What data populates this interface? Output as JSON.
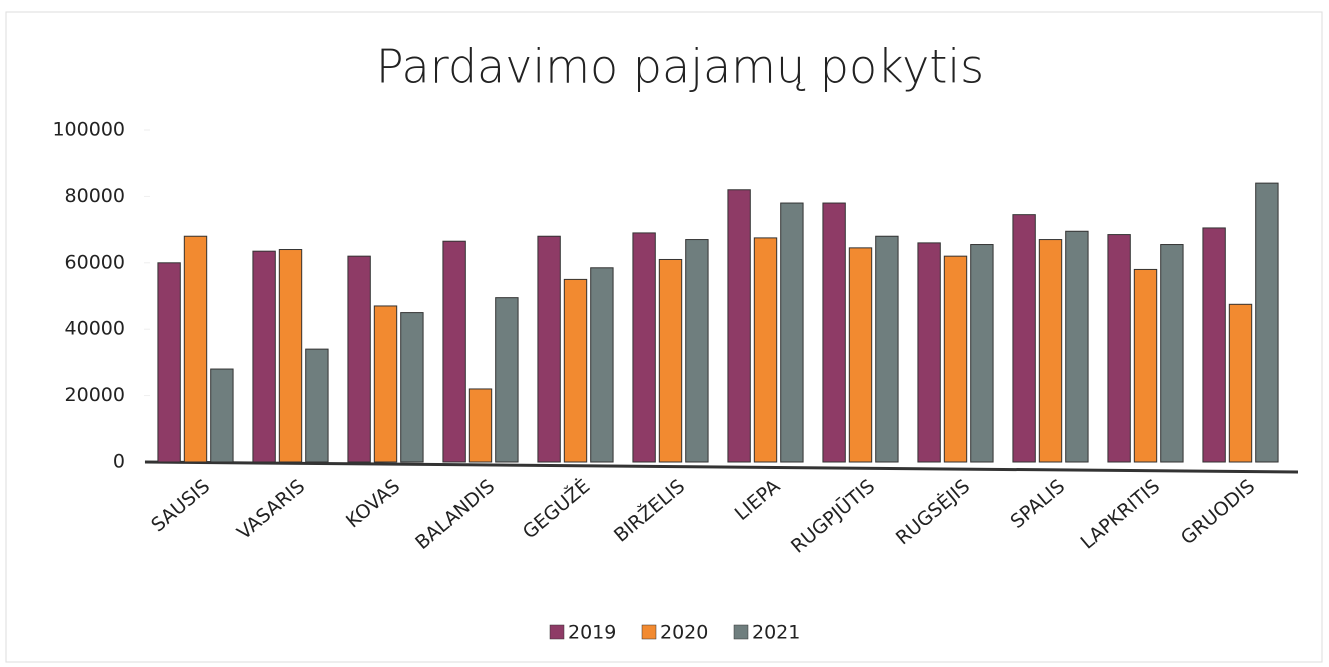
{
  "chart_data": {
    "type": "bar",
    "title": "Pardavimo pajamų pokytis",
    "categories": [
      "SAUSIS",
      "VASARIS",
      "KOVAS",
      "BALANDIS",
      "GEGUŽĖ",
      "BIRŽELIS",
      "LIEPA",
      "RUGPJŪTIS",
      "RUGSĖJIS",
      "SPALIS",
      "LAPKRITIS",
      "GRUODIS"
    ],
    "series": [
      {
        "name": "2019",
        "color": "#8e3b66",
        "values": [
          60000,
          63500,
          62000,
          66500,
          68000,
          69000,
          82000,
          78000,
          66000,
          74500,
          68500,
          70500
        ]
      },
      {
        "name": "2020",
        "color": "#f28a30",
        "values": [
          68000,
          64000,
          47000,
          22000,
          55000,
          61000,
          67500,
          64500,
          62000,
          67000,
          58000,
          47500
        ]
      },
      {
        "name": "2021",
        "color": "#6f7e7e",
        "values": [
          28000,
          34000,
          45000,
          49500,
          58500,
          67000,
          78000,
          68000,
          65500,
          69500,
          65500,
          84000
        ]
      }
    ],
    "ylim": [
      0,
      100000
    ],
    "yticks": [
      0,
      20000,
      40000,
      60000,
      80000,
      100000
    ],
    "legend": "bottom"
  }
}
